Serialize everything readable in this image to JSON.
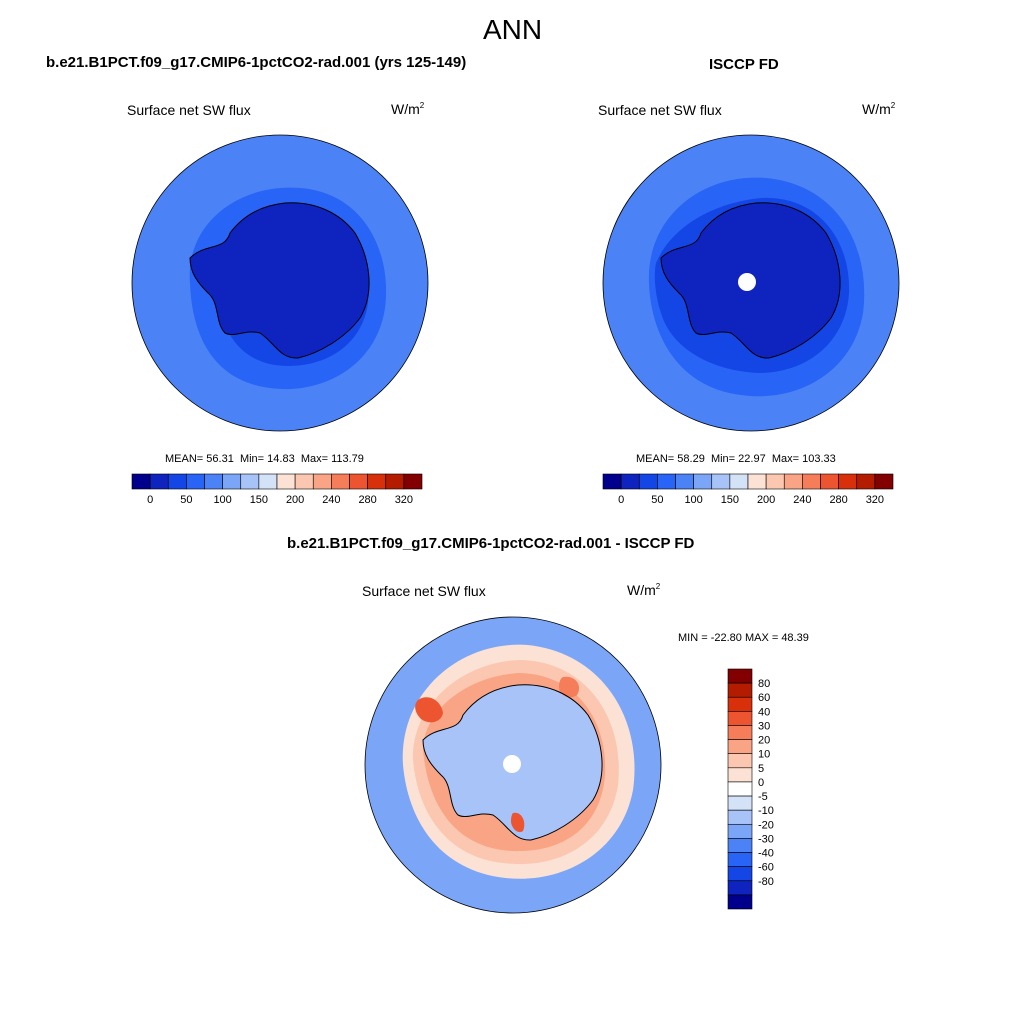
{
  "figure": {
    "title": "ANN"
  },
  "panels": [
    {
      "id": "model",
      "case_title": "b.e21.B1PCT.f09_g17.CMIP6-1pctCO2-rad.001 (yrs 125-149)",
      "variable": "Surface net SW flux",
      "units_base": "W/m",
      "units_exp": "2",
      "stats": {
        "mean_label": "MEAN=",
        "mean": "56.31",
        "min_label": "Min=",
        "min": "14.83",
        "max_label": "Max=",
        "max": "113.79"
      },
      "missing_pole": false
    },
    {
      "id": "obs",
      "case_title": "ISCCP FD",
      "variable": "Surface net SW flux",
      "units_base": "W/m",
      "units_exp": "2",
      "stats": {
        "mean_label": "MEAN=",
        "mean": "58.29",
        "min_label": "Min=",
        "min": "22.97",
        "max_label": "Max=",
        "max": "103.33"
      },
      "missing_pole": true
    },
    {
      "id": "diff",
      "case_title": "b.e21.B1PCT.f09_g17.CMIP6-1pctCO2-rad.001 - ISCCP FD",
      "variable": "Surface net SW flux",
      "units_base": "W/m",
      "units_exp": "2",
      "stats_text": "MIN = -22.80 MAX =  48.39",
      "missing_pole": true
    }
  ],
  "abs_colorbar": {
    "colors": [
      "#00008c",
      "#0f23be",
      "#1446e6",
      "#2864f5",
      "#4b82f5",
      "#7ba5f7",
      "#a7c3f7",
      "#d3e2f7",
      "#fbe2d4",
      "#fcc7b0",
      "#f9a485",
      "#f57d5a",
      "#ed5430",
      "#d7300a",
      "#b41c00",
      "#820000"
    ],
    "labels": [
      "0",
      "50",
      "100",
      "150",
      "200",
      "240",
      "280",
      "320"
    ]
  },
  "diff_colorbar": {
    "colors": [
      "#00008c",
      "#0f23be",
      "#1446e6",
      "#2864f5",
      "#4b82f5",
      "#7ba5f7",
      "#a7c3f7",
      "#d3e2f7",
      "#ffffff",
      "#fbe2d4",
      "#fcc7b0",
      "#f9a485",
      "#f57d5a",
      "#ed5430",
      "#d7300a",
      "#b41c00",
      "#820000"
    ],
    "labels": [
      "80",
      "60",
      "40",
      "30",
      "20",
      "10",
      "5",
      "0",
      "-5",
      "-10",
      "-20",
      "-30",
      "-40",
      "-60",
      "-80"
    ]
  }
}
